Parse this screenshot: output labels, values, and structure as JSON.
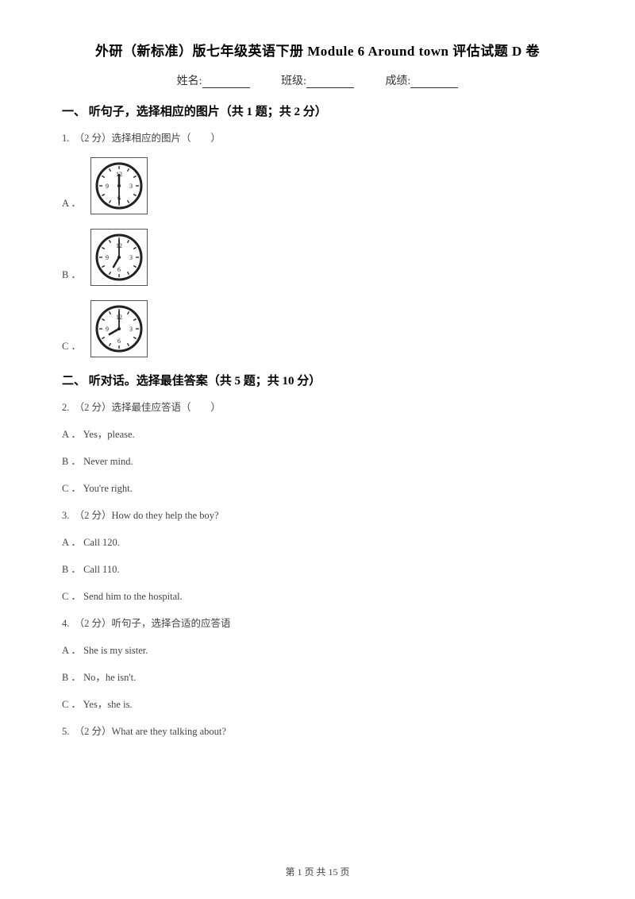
{
  "title": "外研（新标准）版七年级英语下册 Module 6 Around town 评估试题 D 卷",
  "info": {
    "name_label": "姓名:",
    "class_label": "班级:",
    "score_label": "成绩:"
  },
  "section1": {
    "header": "一、 听句子，选择相应的图片（共 1 题；共 2 分）",
    "q1": {
      "text": "1.　（2 分）选择相应的图片（　　）",
      "options": {
        "A": {
          "letter": "A ．",
          "hour_angle": 0,
          "minute_angle": 180
        },
        "B": {
          "letter": "B ．",
          "hour_angle": 210,
          "minute_angle": 0
        },
        "C": {
          "letter": "C ．",
          "hour_angle": 240,
          "minute_angle": 0
        }
      }
    },
    "clock_style": {
      "face_stroke": "#222222",
      "tick_stroke": "#222222",
      "hand_stroke": "#222222",
      "hour_len": 14,
      "minute_len": 22,
      "radius": 28,
      "size": 62
    }
  },
  "section2": {
    "header": "二、 听对话。选择最佳答案（共 5 题；共 10 分）",
    "questions": [
      {
        "text": "2.　（2 分）选择最佳应答语（　　）",
        "options": [
          "A ． Yes，please.",
          "B ． Never mind.",
          "C ． You're right."
        ]
      },
      {
        "text": "3.　（2 分）How do they help the boy?",
        "options": [
          "A ． Call 120.",
          "B ． Call 110.",
          "C ． Send him to the hospital."
        ]
      },
      {
        "text": "4.　（2 分）听句子，选择合适的应答语",
        "options": [
          "A ． She is my sister.",
          "B ． No，he isn't.",
          "C ． Yes，she is."
        ]
      },
      {
        "text": "5.　（2 分）What are they talking about?",
        "options": []
      }
    ]
  },
  "footer": "第 1 页 共 15 页"
}
